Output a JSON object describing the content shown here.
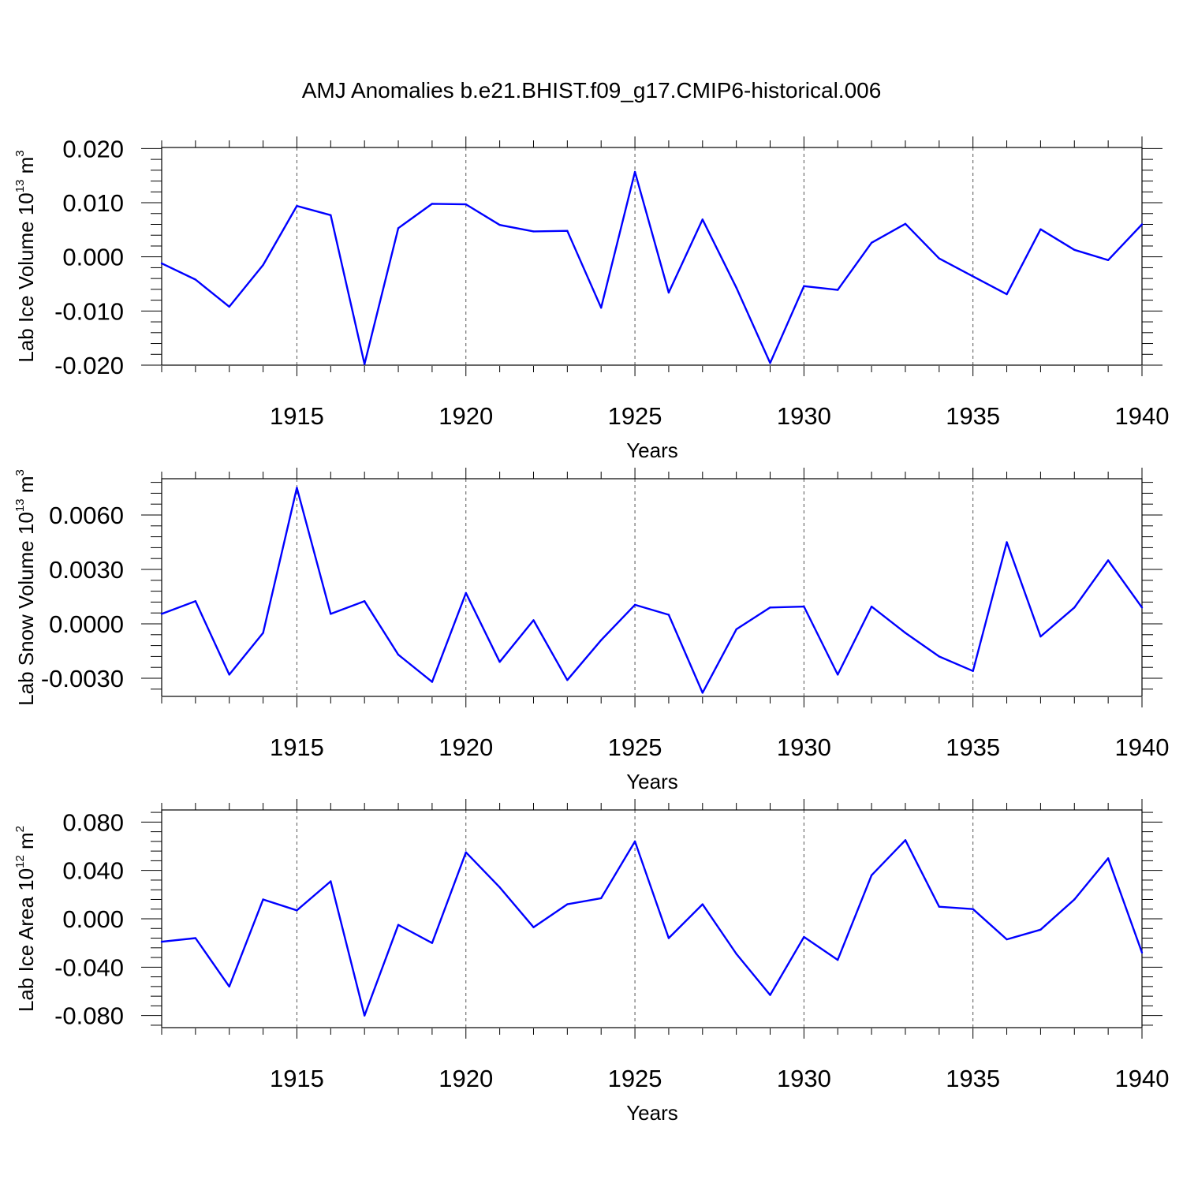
{
  "chart_data": {
    "type": "line",
    "title": "AMJ Anomalies b.e21.BHIST.f09_g17.CMIP6-historical.006",
    "line_color": "#0000ff",
    "x": [
      1911,
      1912,
      1913,
      1914,
      1915,
      1916,
      1917,
      1918,
      1919,
      1920,
      1921,
      1922,
      1923,
      1924,
      1925,
      1926,
      1927,
      1928,
      1929,
      1930,
      1931,
      1932,
      1933,
      1934,
      1935,
      1936,
      1937,
      1938,
      1939,
      1940
    ],
    "xlim": [
      1911,
      1940
    ],
    "xticks": [
      1915,
      1920,
      1925,
      1930,
      1935,
      1940
    ],
    "xlabel": "Years",
    "panels": [
      {
        "ylabel": "Lab Ice Volume 10",
        "ylabel_exp": "13",
        "ylabel_unit": " m",
        "ylabel_unit_exp": "3",
        "ylim": [
          -0.02,
          0.0202
        ],
        "yticks": [
          -0.02,
          -0.01,
          0.0,
          0.01,
          0.02
        ],
        "ytick_labels": [
          "-0.020",
          "-0.010",
          "0.000",
          "0.010",
          "0.020"
        ],
        "values": [
          -0.0012,
          -0.0042,
          -0.0092,
          -0.0015,
          0.0094,
          0.0077,
          -0.0198,
          0.0053,
          0.0098,
          0.0097,
          0.0059,
          0.0047,
          0.0048,
          -0.0094,
          0.0157,
          -0.0066,
          0.0069,
          -0.0057,
          -0.0196,
          -0.0054,
          -0.0061,
          0.0026,
          0.0061,
          -0.0003,
          -0.0036,
          -0.0069,
          0.0051,
          0.0013,
          -0.0006,
          0.006
        ]
      },
      {
        "ylabel": "Lab Snow Volume 10",
        "ylabel_exp": "13",
        "ylabel_unit": " m",
        "ylabel_unit_exp": "3",
        "ylim": [
          -0.004,
          0.008
        ],
        "yticks": [
          -0.003,
          0.0,
          0.003,
          0.006
        ],
        "ytick_labels": [
          "-0.0030",
          "0.0000",
          "0.0030",
          "0.0060"
        ],
        "values": [
          0.00055,
          0.00125,
          -0.0028,
          -0.0005,
          0.0075,
          0.00055,
          0.00125,
          -0.0017,
          -0.0032,
          0.0017,
          -0.0021,
          0.0002,
          -0.0031,
          -0.0009,
          0.00105,
          0.0005,
          -0.0038,
          -0.0003,
          0.0009,
          0.00095,
          -0.0028,
          0.00095,
          -0.0005,
          -0.0018,
          -0.0026,
          0.0045,
          -0.0007,
          0.0009,
          0.0035,
          0.0009
        ]
      },
      {
        "ylabel": "Lab Ice Area 10",
        "ylabel_exp": "12",
        "ylabel_unit": " m",
        "ylabel_unit_exp": "2",
        "ylim": [
          -0.09,
          0.09
        ],
        "yticks": [
          -0.08,
          -0.04,
          0.0,
          0.04,
          0.08
        ],
        "ytick_labels": [
          "-0.080",
          "-0.040",
          "0.000",
          "0.040",
          "0.080"
        ],
        "values": [
          -0.019,
          -0.016,
          -0.056,
          0.016,
          0.007,
          0.031,
          -0.08,
          -0.005,
          -0.02,
          0.055,
          0.026,
          -0.007,
          0.012,
          0.017,
          0.064,
          -0.016,
          0.012,
          -0.029,
          -0.063,
          -0.015,
          -0.034,
          0.036,
          0.065,
          0.01,
          0.008,
          -0.017,
          -0.009,
          0.016,
          0.05,
          -0.028
        ]
      }
    ]
  }
}
